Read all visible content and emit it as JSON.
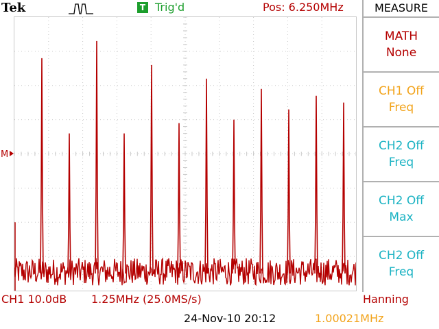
{
  "header": {
    "brand": "Tek",
    "trig_badge": "T",
    "trig_status": "Trig'd",
    "position": "Pos: 6.250MHz",
    "acq_icon": "acquisition-pulse-icon",
    "trigger_marker_icon": "trigger-position-arrow-icon",
    "ref_marker_icon": "math-reference-marker-icon",
    "ref_marker": "M"
  },
  "sidebar": {
    "title": "MEASURE",
    "items": [
      {
        "line1": "MATH",
        "line2": "None",
        "color": "#b40000"
      },
      {
        "line1": "CH1 Off",
        "line2": "Freq",
        "color": "#f2a31a"
      },
      {
        "line1": "CH2 Off",
        "line2": "Freq",
        "color": "#1cb3c3"
      },
      {
        "line1": "CH2 Off",
        "line2": "Max",
        "color": "#1cb3c3"
      },
      {
        "line1": "CH2 Off",
        "line2": "Freq",
        "color": "#1cb3c3"
      }
    ]
  },
  "footer": {
    "channel_scale": "CH1 10.0dB",
    "freq_span": "1.25MHz (25.0MS/s)",
    "window": "Hanning",
    "datetime": "24-Nov-10 20:12",
    "trigger_freq": "1.00021MHz"
  },
  "colors": {
    "trace": "#b40000",
    "grid": "#c8c8c8",
    "trigger": "#1c9e2c",
    "ch1": "#f2a31a",
    "ch2": "#1cb3c3"
  },
  "spectrum": {
    "peaks": [
      {
        "harmonic": 1,
        "level_db": 68
      },
      {
        "harmonic": 3,
        "level_db": 46
      },
      {
        "harmonic": 5,
        "level_db": 73
      },
      {
        "harmonic": 7,
        "level_db": 46
      },
      {
        "harmonic": 9,
        "level_db": 66
      },
      {
        "harmonic": 11,
        "level_db": 49
      },
      {
        "harmonic": 13,
        "level_db": 62
      },
      {
        "harmonic": 15,
        "level_db": 50
      },
      {
        "harmonic": 17,
        "level_db": 59
      },
      {
        "harmonic": 19,
        "level_db": 53
      },
      {
        "harmonic": 21,
        "level_db": 57
      },
      {
        "harmonic": 23,
        "level_db": 55
      }
    ],
    "noise_floor_db": 5
  }
}
